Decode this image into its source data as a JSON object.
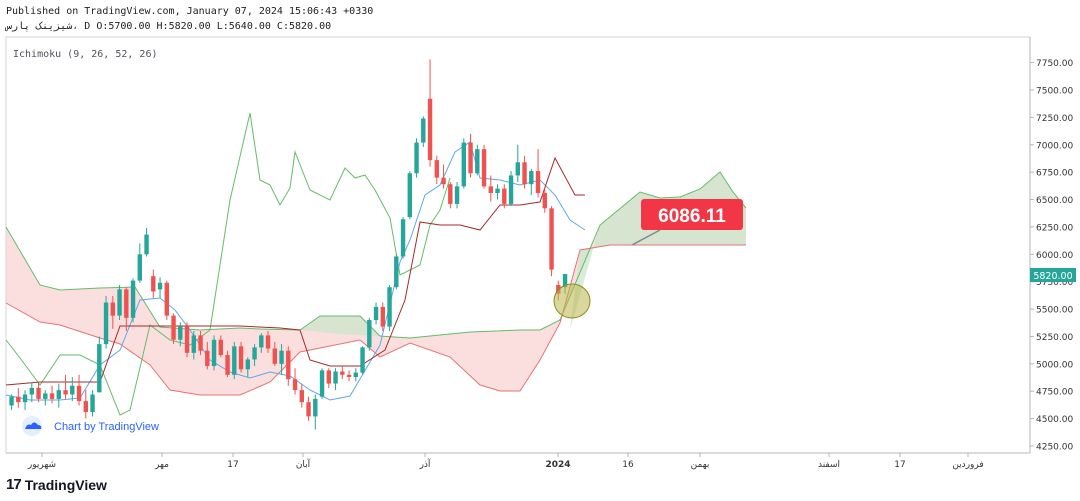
{
  "header": {
    "published": "Published on TradingView.com, January 07, 2024 15:06:43 +0330",
    "symbol_line": "شیزینک پارس، D O:5700.00 H:5820.00 L:5640.00 C:5820.00"
  },
  "footer": {
    "logo_glyph": "17",
    "brand": "TradingView"
  },
  "chart_data": {
    "type": "candlestick",
    "indicator_label": "Ichimoku (9, 26, 52, 26)",
    "watermark": "Chart by TradingView",
    "ylim": [
      4200,
      7900
    ],
    "y_ticks": [
      "7750.00",
      "7500.00",
      "7250.00",
      "7000.00",
      "6750.00",
      "6500.00",
      "6250.00",
      "6000.00",
      "5750.00",
      "5500.00",
      "5250.00",
      "5000.00",
      "4750.00",
      "4500.00",
      "4250.00"
    ],
    "x_tick_labels": [
      "شهریور",
      "مهر",
      "17",
      "آبان",
      "آذر",
      "2024",
      "16",
      "بهمن",
      "اسفند",
      "17",
      "فروردین"
    ],
    "last_price": "5820.00",
    "callout": "6086.11",
    "candles": [
      {
        "i": 1,
        "o": 4620,
        "h": 4720,
        "l": 4580,
        "c": 4700
      },
      {
        "i": 2,
        "o": 4700,
        "h": 4780,
        "l": 4600,
        "c": 4650
      },
      {
        "i": 3,
        "o": 4650,
        "h": 4760,
        "l": 4580,
        "c": 4720
      },
      {
        "i": 4,
        "o": 4720,
        "h": 4830,
        "l": 4650,
        "c": 4780
      },
      {
        "i": 5,
        "o": 4780,
        "h": 4830,
        "l": 4650,
        "c": 4680
      },
      {
        "i": 6,
        "o": 4680,
        "h": 4760,
        "l": 4620,
        "c": 4730
      },
      {
        "i": 7,
        "o": 4730,
        "h": 4800,
        "l": 4640,
        "c": 4680
      },
      {
        "i": 8,
        "o": 4680,
        "h": 4820,
        "l": 4600,
        "c": 4760
      },
      {
        "i": 9,
        "o": 4760,
        "h": 4900,
        "l": 4680,
        "c": 4720
      },
      {
        "i": 10,
        "o": 4720,
        "h": 4880,
        "l": 4660,
        "c": 4800
      },
      {
        "i": 11,
        "o": 4800,
        "h": 4900,
        "l": 4620,
        "c": 4660
      },
      {
        "i": 12,
        "o": 4660,
        "h": 4760,
        "l": 4500,
        "c": 4560
      },
      {
        "i": 13,
        "o": 4560,
        "h": 4760,
        "l": 4520,
        "c": 4720
      },
      {
        "i": 14,
        "o": 4740,
        "h": 5250,
        "l": 4740,
        "c": 5180
      },
      {
        "i": 15,
        "o": 5180,
        "h": 5620,
        "l": 5140,
        "c": 5560
      },
      {
        "i": 16,
        "o": 5560,
        "h": 5620,
        "l": 5320,
        "c": 5440
      },
      {
        "i": 17,
        "o": 5440,
        "h": 5720,
        "l": 5400,
        "c": 5680
      },
      {
        "i": 18,
        "o": 5680,
        "h": 5700,
        "l": 5300,
        "c": 5420
      },
      {
        "i": 19,
        "o": 5420,
        "h": 5780,
        "l": 5380,
        "c": 5760
      },
      {
        "i": 20,
        "o": 5760,
        "h": 6100,
        "l": 5740,
        "c": 6000
      },
      {
        "i": 21,
        "o": 6000,
        "h": 6240,
        "l": 5980,
        "c": 6180
      },
      {
        "i": 22,
        "o": 5800,
        "h": 5860,
        "l": 5600,
        "c": 5660
      },
      {
        "i": 23,
        "o": 5680,
        "h": 5790,
        "l": 5600,
        "c": 5740
      },
      {
        "i": 24,
        "o": 5740,
        "h": 5760,
        "l": 5400,
        "c": 5440
      },
      {
        "i": 25,
        "o": 5440,
        "h": 5460,
        "l": 5180,
        "c": 5220
      },
      {
        "i": 26,
        "o": 5220,
        "h": 5380,
        "l": 5160,
        "c": 5340
      },
      {
        "i": 27,
        "o": 5340,
        "h": 5380,
        "l": 5060,
        "c": 5100
      },
      {
        "i": 28,
        "o": 5100,
        "h": 5300,
        "l": 5040,
        "c": 5260
      },
      {
        "i": 29,
        "o": 5260,
        "h": 5300,
        "l": 5080,
        "c": 5120
      },
      {
        "i": 30,
        "o": 5120,
        "h": 5200,
        "l": 4950,
        "c": 4980
      },
      {
        "i": 31,
        "o": 4980,
        "h": 5260,
        "l": 4940,
        "c": 5220
      },
      {
        "i": 32,
        "o": 5220,
        "h": 5260,
        "l": 5060,
        "c": 5080
      },
      {
        "i": 33,
        "o": 5080,
        "h": 5120,
        "l": 4880,
        "c": 4900
      },
      {
        "i": 34,
        "o": 4900,
        "h": 5200,
        "l": 4860,
        "c": 5160
      },
      {
        "i": 35,
        "o": 5160,
        "h": 5200,
        "l": 4920,
        "c": 4950
      },
      {
        "i": 36,
        "o": 4950,
        "h": 5060,
        "l": 4880,
        "c": 5040
      },
      {
        "i": 37,
        "o": 5040,
        "h": 5180,
        "l": 4980,
        "c": 5150
      },
      {
        "i": 38,
        "o": 5150,
        "h": 5280,
        "l": 5100,
        "c": 5260
      },
      {
        "i": 39,
        "o": 5260,
        "h": 5300,
        "l": 5100,
        "c": 5140
      },
      {
        "i": 40,
        "o": 5140,
        "h": 5200,
        "l": 4980,
        "c": 5000
      },
      {
        "i": 41,
        "o": 5000,
        "h": 5180,
        "l": 4900,
        "c": 5120
      },
      {
        "i": 42,
        "o": 5120,
        "h": 5160,
        "l": 4800,
        "c": 4860
      },
      {
        "i": 43,
        "o": 4860,
        "h": 4960,
        "l": 4720,
        "c": 4760
      },
      {
        "i": 44,
        "o": 4760,
        "h": 4820,
        "l": 4600,
        "c": 4650
      },
      {
        "i": 45,
        "o": 4650,
        "h": 4700,
        "l": 4480,
        "c": 4520
      },
      {
        "i": 46,
        "o": 4520,
        "h": 4720,
        "l": 4400,
        "c": 4680
      },
      {
        "i": 47,
        "o": 4700,
        "h": 4960,
        "l": 4680,
        "c": 4940
      },
      {
        "i": 48,
        "o": 4940,
        "h": 4960,
        "l": 4780,
        "c": 4820
      },
      {
        "i": 49,
        "o": 4820,
        "h": 4960,
        "l": 4760,
        "c": 4930
      },
      {
        "i": 50,
        "o": 4930,
        "h": 4980,
        "l": 4860,
        "c": 4900
      },
      {
        "i": 51,
        "o": 4900,
        "h": 4940,
        "l": 4840,
        "c": 4880
      },
      {
        "i": 52,
        "o": 4880,
        "h": 4960,
        "l": 4840,
        "c": 4920
      },
      {
        "i": 53,
        "o": 4920,
        "h": 5160,
        "l": 4900,
        "c": 5150
      },
      {
        "i": 54,
        "o": 5150,
        "h": 5420,
        "l": 5120,
        "c": 5400
      },
      {
        "i": 55,
        "o": 5400,
        "h": 5560,
        "l": 5360,
        "c": 5520
      },
      {
        "i": 56,
        "o": 5520,
        "h": 5560,
        "l": 5300,
        "c": 5340
      },
      {
        "i": 57,
        "o": 5340,
        "h": 5720,
        "l": 5300,
        "c": 5700
      },
      {
        "i": 58,
        "o": 5700,
        "h": 6000,
        "l": 5680,
        "c": 5980
      },
      {
        "i": 59,
        "o": 5980,
        "h": 6340,
        "l": 5960,
        "c": 6320
      },
      {
        "i": 60,
        "o": 6340,
        "h": 6760,
        "l": 6320,
        "c": 6740
      },
      {
        "i": 61,
        "o": 6740,
        "h": 7060,
        "l": 6700,
        "c": 7020
      },
      {
        "i": 62,
        "o": 7020,
        "h": 7260,
        "l": 6980,
        "c": 7240
      },
      {
        "i": 63,
        "o": 7420,
        "h": 7780,
        "l": 6800,
        "c": 6860
      },
      {
        "i": 64,
        "o": 6860,
        "h": 6900,
        "l": 6640,
        "c": 6700
      },
      {
        "i": 65,
        "o": 6700,
        "h": 6820,
        "l": 6600,
        "c": 6640
      },
      {
        "i": 66,
        "o": 6640,
        "h": 6660,
        "l": 6420,
        "c": 6460
      },
      {
        "i": 67,
        "o": 6460,
        "h": 6660,
        "l": 6420,
        "c": 6620
      },
      {
        "i": 68,
        "o": 6620,
        "h": 7060,
        "l": 6600,
        "c": 7020
      },
      {
        "i": 69,
        "o": 7020,
        "h": 7100,
        "l": 6700,
        "c": 6740
      },
      {
        "i": 70,
        "o": 6740,
        "h": 7000,
        "l": 6720,
        "c": 6960
      },
      {
        "i": 71,
        "o": 6960,
        "h": 7000,
        "l": 6600,
        "c": 6620
      },
      {
        "i": 72,
        "o": 6620,
        "h": 6720,
        "l": 6480,
        "c": 6560
      },
      {
        "i": 73,
        "o": 6560,
        "h": 6640,
        "l": 6500,
        "c": 6600
      },
      {
        "i": 74,
        "o": 6600,
        "h": 6640,
        "l": 6420,
        "c": 6460
      },
      {
        "i": 75,
        "o": 6460,
        "h": 6760,
        "l": 6440,
        "c": 6720
      },
      {
        "i": 76,
        "o": 6720,
        "h": 7000,
        "l": 6660,
        "c": 6840
      },
      {
        "i": 77,
        "o": 6840,
        "h": 6900,
        "l": 6600,
        "c": 6640
      },
      {
        "i": 78,
        "o": 6640,
        "h": 6780,
        "l": 6540,
        "c": 6760
      },
      {
        "i": 79,
        "o": 6760,
        "h": 6960,
        "l": 6520,
        "c": 6560
      },
      {
        "i": 80,
        "o": 6560,
        "h": 6600,
        "l": 6380,
        "c": 6420
      },
      {
        "i": 81,
        "o": 6420,
        "h": 6440,
        "l": 5800,
        "c": 5860
      },
      {
        "i": 82,
        "o": 5720,
        "h": 5760,
        "l": 5580,
        "c": 5640
      },
      {
        "i": 83,
        "o": 5700,
        "h": 5820,
        "l": 5640,
        "c": 5820
      }
    ]
  }
}
